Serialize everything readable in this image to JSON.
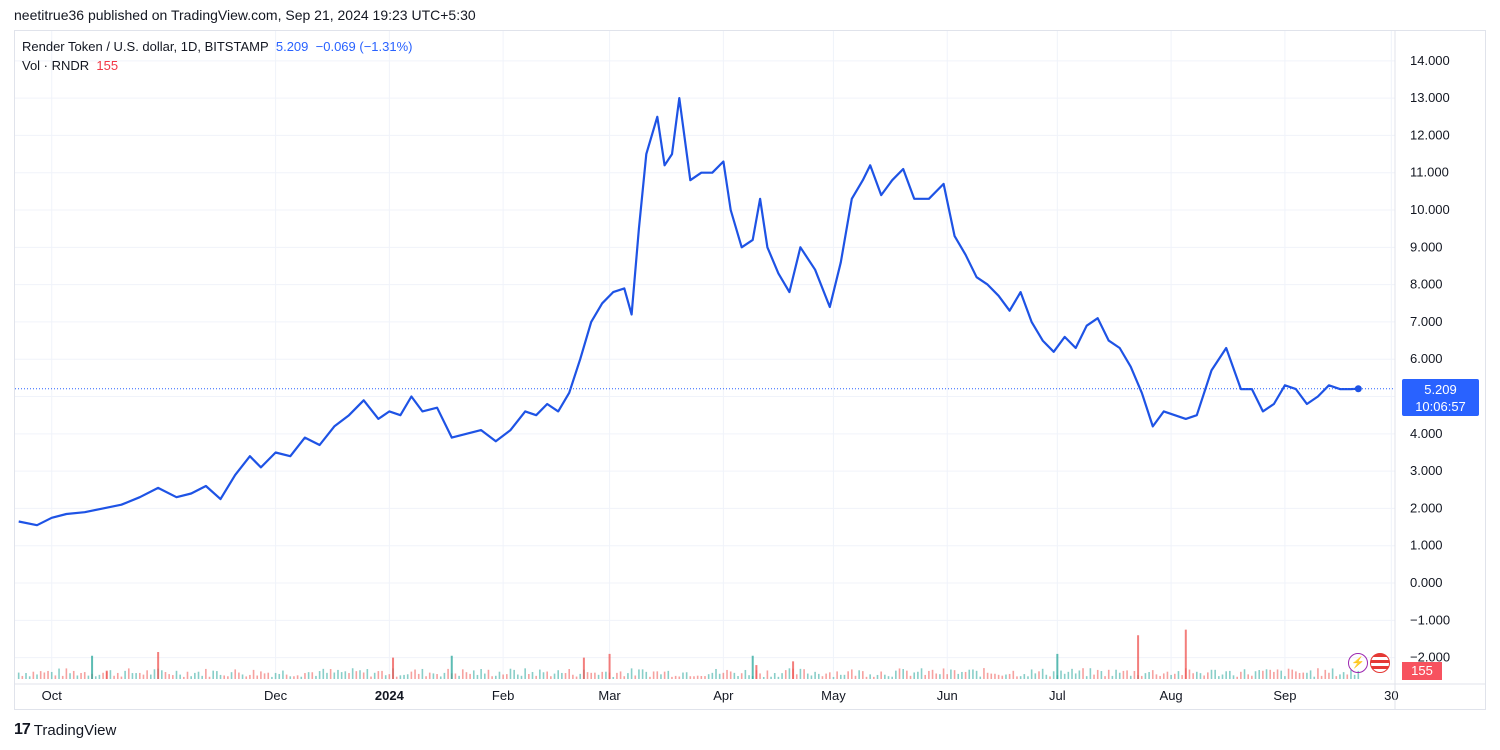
{
  "header": {
    "publish_line": "neetitrue36 published on TradingView.com, Sep 21, 2024 19:23 UTC+5:30"
  },
  "legend": {
    "symbol": "Render Token / U.S. dollar, 1D, BITSTAMP",
    "price": "5.209",
    "change": "−0.069 (−1.31%)",
    "vol_label": "Vol · RNDR",
    "vol_value": "155"
  },
  "badges": {
    "price": "5.209",
    "countdown": "10:06:57",
    "volume": "155"
  },
  "footer": {
    "brand": "TradingView",
    "mark": "17"
  },
  "colors": {
    "line": "#1e53e5",
    "vol_up": "#26a69a",
    "vol_down": "#ef5350",
    "badge": "#2962ff"
  },
  "icons": [
    "lightning-icon",
    "us-flag-icon"
  ],
  "chart_data": {
    "type": "line",
    "series": [
      {
        "x": [
          "2023-09-22",
          "2023-09-27",
          "2023-10-01",
          "2023-10-05",
          "2023-10-10",
          "2023-10-15",
          "2023-10-20",
          "2023-10-25",
          "2023-10-30",
          "2023-11-04",
          "2023-11-08",
          "2023-11-12",
          "2023-11-16",
          "2023-11-20",
          "2023-11-24",
          "2023-11-27",
          "2023-12-01",
          "2023-12-05",
          "2023-12-09",
          "2023-12-13",
          "2023-12-17",
          "2023-12-21",
          "2023-12-25",
          "2023-12-29",
          "2024-01-01",
          "2024-01-04",
          "2024-01-07",
          "2024-01-10",
          "2024-01-14",
          "2024-01-18",
          "2024-01-22",
          "2024-01-26",
          "2024-01-30",
          "2024-02-03",
          "2024-02-07",
          "2024-02-10",
          "2024-02-13",
          "2024-02-16",
          "2024-02-19",
          "2024-02-22",
          "2024-02-25",
          "2024-02-28",
          "2024-03-02",
          "2024-03-05",
          "2024-03-07",
          "2024-03-09",
          "2024-03-11",
          "2024-03-14",
          "2024-03-16",
          "2024-03-18",
          "2024-03-20",
          "2024-03-23",
          "2024-03-26",
          "2024-03-29",
          "2024-04-01",
          "2024-04-03",
          "2024-04-06",
          "2024-04-09",
          "2024-04-11",
          "2024-04-13",
          "2024-04-16",
          "2024-04-19",
          "2024-04-22",
          "2024-04-26",
          "2024-04-30",
          "2024-05-03",
          "2024-05-06",
          "2024-05-09",
          "2024-05-11",
          "2024-05-14",
          "2024-05-17",
          "2024-05-20",
          "2024-05-23",
          "2024-05-27",
          "2024-05-31",
          "2024-06-03",
          "2024-06-06",
          "2024-06-09",
          "2024-06-12",
          "2024-06-15",
          "2024-06-18",
          "2024-06-21",
          "2024-06-24",
          "2024-06-27",
          "2024-06-30",
          "2024-07-03",
          "2024-07-06",
          "2024-07-09",
          "2024-07-12",
          "2024-07-15",
          "2024-07-18",
          "2024-07-21",
          "2024-07-24",
          "2024-07-27",
          "2024-07-30",
          "2024-08-02",
          "2024-08-05",
          "2024-08-08",
          "2024-08-12",
          "2024-08-16",
          "2024-08-20",
          "2024-08-23",
          "2024-08-26",
          "2024-08-29",
          "2024-09-01",
          "2024-09-04",
          "2024-09-07",
          "2024-09-10",
          "2024-09-13",
          "2024-09-16",
          "2024-09-19",
          "2024-09-21"
        ],
        "values": [
          1.65,
          1.55,
          1.75,
          1.85,
          1.9,
          2.0,
          2.1,
          2.3,
          2.55,
          2.3,
          2.4,
          2.6,
          2.25,
          2.9,
          3.4,
          3.1,
          3.5,
          3.4,
          3.9,
          3.7,
          4.2,
          4.5,
          4.9,
          4.4,
          4.6,
          4.5,
          5.0,
          4.6,
          4.7,
          3.9,
          4.0,
          4.1,
          3.8,
          4.1,
          4.6,
          4.5,
          4.8,
          4.6,
          5.1,
          6.0,
          7.0,
          7.5,
          7.8,
          7.9,
          7.2,
          9.5,
          11.5,
          12.5,
          11.2,
          11.5,
          13.0,
          10.8,
          11.0,
          11.0,
          11.3,
          10.0,
          9.0,
          9.2,
          10.3,
          9.0,
          8.3,
          7.8,
          9.0,
          8.4,
          7.4,
          8.6,
          10.3,
          10.8,
          11.2,
          10.4,
          10.8,
          11.1,
          10.3,
          10.3,
          10.7,
          9.3,
          8.8,
          8.2,
          8.0,
          7.7,
          7.3,
          7.8,
          7.0,
          6.5,
          6.2,
          6.6,
          6.3,
          6.9,
          7.1,
          6.5,
          6.3,
          5.8,
          5.1,
          4.2,
          4.6,
          4.5,
          4.4,
          4.5,
          5.7,
          6.3,
          5.2,
          5.2,
          4.6,
          4.8,
          5.3,
          5.2,
          4.8,
          5.0,
          5.3,
          5.2,
          5.2,
          5.209
        ]
      }
    ],
    "ylim": [
      -2.6,
      14.8
    ],
    "y_ticks": [
      "14.000",
      "13.000",
      "12.000",
      "11.000",
      "10.000",
      "9.000",
      "8.000",
      "7.000",
      "6.000",
      "5.000",
      "4.000",
      "3.000",
      "2.000",
      "1.000",
      "0.000",
      "−1.000",
      "−2.000"
    ],
    "x_ticks": [
      {
        "label": "Oct",
        "date": "2023-10-01"
      },
      {
        "label": "Dec",
        "date": "2023-12-01"
      },
      {
        "label": "2024",
        "date": "2024-01-01"
      },
      {
        "label": "Feb",
        "date": "2024-02-01"
      },
      {
        "label": "Mar",
        "date": "2024-03-01"
      },
      {
        "label": "Apr",
        "date": "2024-04-01"
      },
      {
        "label": "May",
        "date": "2024-05-01"
      },
      {
        "label": "Jun",
        "date": "2024-06-01"
      },
      {
        "label": "Jul",
        "date": "2024-07-01"
      },
      {
        "label": "Aug",
        "date": "2024-08-01"
      },
      {
        "label": "Sep",
        "date": "2024-09-01"
      },
      {
        "label": "30",
        "date": "2024-09-30"
      }
    ],
    "xlim": [
      "2023-09-21",
      "2024-10-01"
    ],
    "volume_spikes": [
      {
        "date": "2023-10-12",
        "value": -1.95,
        "up": true
      },
      {
        "date": "2023-10-16",
        "value": -2.35,
        "up": false
      },
      {
        "date": "2023-10-30",
        "value": -1.85,
        "up": false
      },
      {
        "date": "2024-01-02",
        "value": -2.0,
        "up": false
      },
      {
        "date": "2024-01-18",
        "value": -1.95,
        "up": true
      },
      {
        "date": "2024-02-23",
        "value": -2.0,
        "up": false
      },
      {
        "date": "2024-03-01",
        "value": -1.9,
        "up": false
      },
      {
        "date": "2024-04-09",
        "value": -1.95,
        "up": true
      },
      {
        "date": "2024-04-10",
        "value": -2.2,
        "up": false
      },
      {
        "date": "2024-04-20",
        "value": -2.1,
        "up": false
      },
      {
        "date": "2024-07-01",
        "value": -1.9,
        "up": true
      },
      {
        "date": "2024-07-23",
        "value": -1.4,
        "up": false
      },
      {
        "date": "2024-08-05",
        "value": -1.25,
        "up": false
      }
    ],
    "grid": true
  }
}
